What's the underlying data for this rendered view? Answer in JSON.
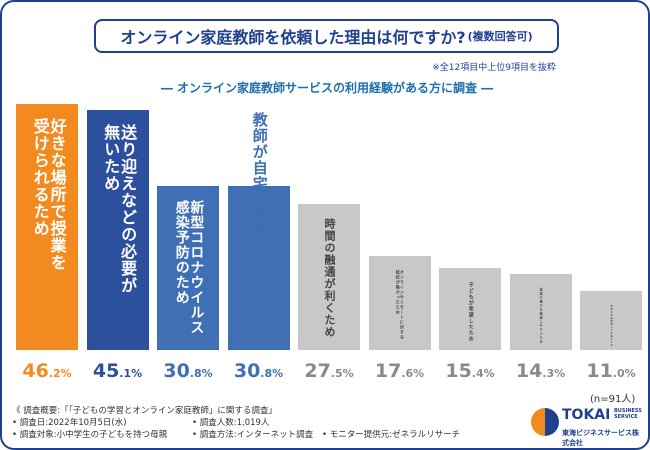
{
  "title": {
    "main": "オンライン家庭教師を依頼した理由は何ですか?",
    "sub": "(複数回答可)"
  },
  "note": "※全12項目中上位9項目を抜粋",
  "subtitle": "― オンライン家庭教師サービスの利用経験がある方に調査 ―",
  "n_note": "(n=91人)",
  "footer": {
    "overview": "《 調査概要:「「子どもの学習とオンライン家庭教師」に関する調査」",
    "date": "• 調査日:2022年10月5日(水)",
    "count": "• 調査人数:1,019人",
    "target": "• 調査対象:小中学生の子どもを持つ母親",
    "method": "• 調査方法:インターネット調査",
    "provider": "• モニター提供元:ゼネラルリサーチ"
  },
  "logo": {
    "name": "TOKAI",
    "small": "BUSINESS SERVICE",
    "jp": "東海ビジネスサービス株式会社"
  },
  "colors": {
    "navy": "#1f3f8f",
    "orange": "#f28a1f",
    "blue": "#3f6fb5",
    "lightblue": "#4a7fc0",
    "gray": "#c8c8c8"
  },
  "chart_data": {
    "type": "bar",
    "unit": "%",
    "categories": [
      "好きな場所で授業を受けられるため",
      "送り迎えなどの必要が無いため",
      "新型コロナウイルス感染予防のため",
      "教師が自宅を訪問しないため",
      "時間の融通が利くため",
      "オンラインやリモートに対する抵抗が無かったため",
      "子どもが希望したため",
      "授業の様子を確認しやすいため",
      "従来の家庭教師より安価なため"
    ],
    "label_lines": [
      [
        "好きな場所で授業を",
        "受けられるため"
      ],
      [
        "送り迎えなどの必要が",
        "無いため"
      ],
      [
        "新型コロナウイルス",
        "感染予防のため"
      ],
      [
        "教師が自宅を訪問しないため"
      ],
      [
        "時間の融通が利くため"
      ],
      [
        "オンラインやリモートに対する",
        "抵抗が無かったため"
      ],
      [
        "子どもが希望したため"
      ],
      [
        "授業の様子を確認しやすいため"
      ],
      [
        "従来の家庭教師より安価なため"
      ]
    ],
    "values": [
      46.2,
      45.1,
      30.8,
      30.8,
      27.5,
      17.6,
      15.4,
      14.3,
      11.0
    ],
    "value_labels": [
      {
        "num": "46",
        "dec": ".2%"
      },
      {
        "num": "45",
        "dec": ".1%"
      },
      {
        "num": "30",
        "dec": ".8%"
      },
      {
        "num": "30",
        "dec": ".8%"
      },
      {
        "num": "27",
        "dec": ".5%"
      },
      {
        "num": "17",
        "dec": ".6%"
      },
      {
        "num": "15",
        "dec": ".4%"
      },
      {
        "num": "14",
        "dec": ".3%"
      },
      {
        "num": "11",
        "dec": ".0%"
      }
    ],
    "bar_colors": [
      "#f28a1f",
      "#2c4f9e",
      "#3f6fb5",
      "#3f6fb5",
      "#c8c8c8",
      "#c8c8c8",
      "#c8c8c8",
      "#c8c8c8",
      "#c8c8c8"
    ],
    "label_colors": [
      "#ffffff",
      "#ffffff",
      "#ffffff",
      "#3f6fb5",
      "#444444",
      "#444444",
      "#444444",
      "#444444",
      "#444444"
    ],
    "value_colors": [
      "#f28a1f",
      "#2c4f9e",
      "#3f6fb5",
      "#3f6fb5",
      "#8a8a8a",
      "#8a8a8a",
      "#8a8a8a",
      "#8a8a8a",
      "#8a8a8a"
    ],
    "ylim": [
      0,
      46.2
    ],
    "grid": false,
    "legend": "none"
  }
}
